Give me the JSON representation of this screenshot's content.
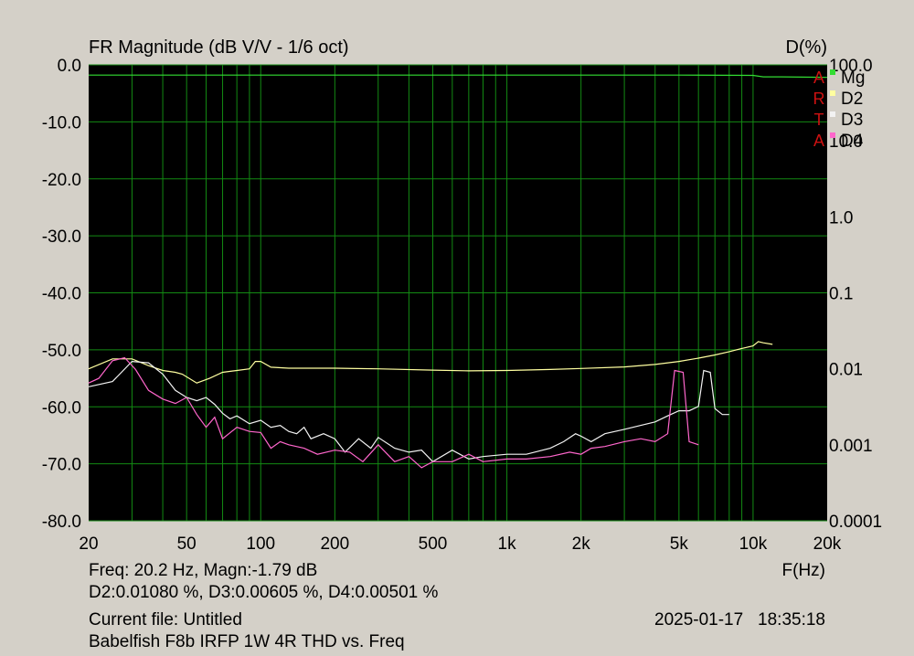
{
  "chart_data": {
    "type": "line",
    "title": "FR Magnitude (dB V/V - 1/6 oct)",
    "right_axis_title": "D(%)",
    "xlabel": "F(Hz)",
    "xscale": "log",
    "xlim": [
      20,
      20000
    ],
    "x_tick_labels": [
      "20",
      "50",
      "100",
      "200",
      "500",
      "1k",
      "2k",
      "5k",
      "10k",
      "20k"
    ],
    "x_tick_values": [
      20,
      50,
      100,
      200,
      500,
      1000,
      2000,
      5000,
      10000,
      20000
    ],
    "ylim": [
      -80,
      0
    ],
    "y_tick_labels": [
      "0.0",
      "-10.0",
      "-20.0",
      "-30.0",
      "-40.0",
      "-50.0",
      "-60.0",
      "-70.0",
      "-80.0"
    ],
    "y2scale": "log",
    "y2lim": [
      0.0001,
      100
    ],
    "y2_tick_labels": [
      "100.0",
      "10.0",
      "1.0",
      "0.1",
      "0.01",
      "0.001",
      "0.0001"
    ],
    "y2_tick_values": [
      100,
      10,
      1,
      0.1,
      0.01,
      0.001,
      0.0001
    ],
    "grid": true,
    "legend_position": "top-right",
    "brand_letters": [
      "A",
      "R",
      "T",
      "A"
    ],
    "series": [
      {
        "name": "Mg",
        "axis": "left",
        "color": "#33dd33",
        "x": [
          20,
          100,
          1000,
          5000,
          10000,
          11000,
          13000,
          20000
        ],
        "y": [
          -1.79,
          -1.8,
          -1.8,
          -1.8,
          -1.85,
          -2.1,
          -2.1,
          -2.2
        ]
      },
      {
        "name": "D2",
        "axis": "right",
        "color": "#ffffa0",
        "x": [
          20,
          25,
          30,
          35,
          40,
          45,
          48,
          55,
          62,
          70,
          80,
          90,
          95,
          100,
          110,
          130,
          200,
          300,
          500,
          700,
          1000,
          1500,
          2000,
          3000,
          4000,
          5000,
          6000,
          7000,
          8000,
          9000,
          10000,
          10500,
          11000,
          12000
        ],
        "y": [
          0.01,
          0.0135,
          0.0135,
          0.011,
          0.0095,
          0.009,
          0.0085,
          0.0065,
          0.0075,
          0.009,
          0.0095,
          0.01,
          0.0125,
          0.0125,
          0.0105,
          0.0102,
          0.0102,
          0.01,
          0.0096,
          0.0094,
          0.0095,
          0.0098,
          0.0101,
          0.0106,
          0.0114,
          0.0125,
          0.0138,
          0.0152,
          0.0168,
          0.0185,
          0.02,
          0.0228,
          0.022,
          0.021
        ]
      },
      {
        "name": "D3",
        "axis": "right",
        "color": "#f2f2f2",
        "x": [
          20,
          25,
          30,
          35,
          40,
          45,
          50,
          55,
          60,
          65,
          70,
          75,
          80,
          90,
          100,
          110,
          120,
          130,
          140,
          150,
          160,
          180,
          200,
          220,
          250,
          280,
          300,
          350,
          400,
          450,
          500,
          600,
          700,
          800,
          1000,
          1200,
          1500,
          1700,
          1900,
          2000,
          2200,
          2500,
          3000,
          3500,
          4000,
          4500,
          5000,
          5500,
          6000,
          6300,
          6700,
          7000,
          7500,
          8000
        ],
        "y": [
          0.0058,
          0.0068,
          0.0125,
          0.012,
          0.0085,
          0.0052,
          0.0042,
          0.0038,
          0.0042,
          0.0034,
          0.0026,
          0.0022,
          0.0024,
          0.0019,
          0.0021,
          0.0017,
          0.0018,
          0.0015,
          0.0014,
          0.0017,
          0.0012,
          0.0014,
          0.0012,
          0.0008,
          0.0012,
          0.0009,
          0.00125,
          0.0009,
          0.0008,
          0.00085,
          0.0006,
          0.00085,
          0.00065,
          0.0007,
          0.00075,
          0.00075,
          0.0009,
          0.0011,
          0.0014,
          0.0013,
          0.0011,
          0.0014,
          0.0016,
          0.0018,
          0.002,
          0.0024,
          0.0028,
          0.0028,
          0.0032,
          0.0095,
          0.009,
          0.003,
          0.0025,
          0.0025
        ]
      },
      {
        "name": "D4",
        "axis": "right",
        "color": "#ff66cc",
        "x": [
          20,
          22,
          25,
          28,
          31,
          35,
          40,
          45,
          50,
          55,
          60,
          65,
          70,
          80,
          90,
          100,
          110,
          120,
          130,
          150,
          170,
          200,
          230,
          260,
          300,
          350,
          400,
          450,
          500,
          600,
          700,
          800,
          1000,
          1200,
          1500,
          1800,
          2000,
          2200,
          2500,
          3000,
          3500,
          4000,
          4500,
          4800,
          5200,
          5500,
          6000
        ],
        "y": [
          0.0065,
          0.0075,
          0.0128,
          0.014,
          0.0098,
          0.0052,
          0.004,
          0.0035,
          0.0042,
          0.0025,
          0.0017,
          0.0023,
          0.0012,
          0.0017,
          0.0015,
          0.00145,
          0.0009,
          0.0011,
          0.001,
          0.0009,
          0.00075,
          0.00085,
          0.0008,
          0.0006,
          0.001,
          0.0006,
          0.0007,
          0.0005,
          0.0006,
          0.0006,
          0.00075,
          0.0006,
          0.00065,
          0.00065,
          0.0007,
          0.0008,
          0.00075,
          0.0009,
          0.00095,
          0.0011,
          0.0012,
          0.0011,
          0.0014,
          0.0095,
          0.009,
          0.0011,
          0.001
        ]
      }
    ]
  },
  "readout": {
    "line1": "Freq: 20.2 Hz, Magn:-1.79 dB",
    "line2": "D2:0.01080 %, D3:0.00605 %, D4:0.00501 %"
  },
  "file_info": {
    "current_file": "Current file: Untitled",
    "description": "Babelfish F8b IRFP 1W 4R THD vs. Freq",
    "timestamp": "2025-01-17   18:35:18"
  }
}
